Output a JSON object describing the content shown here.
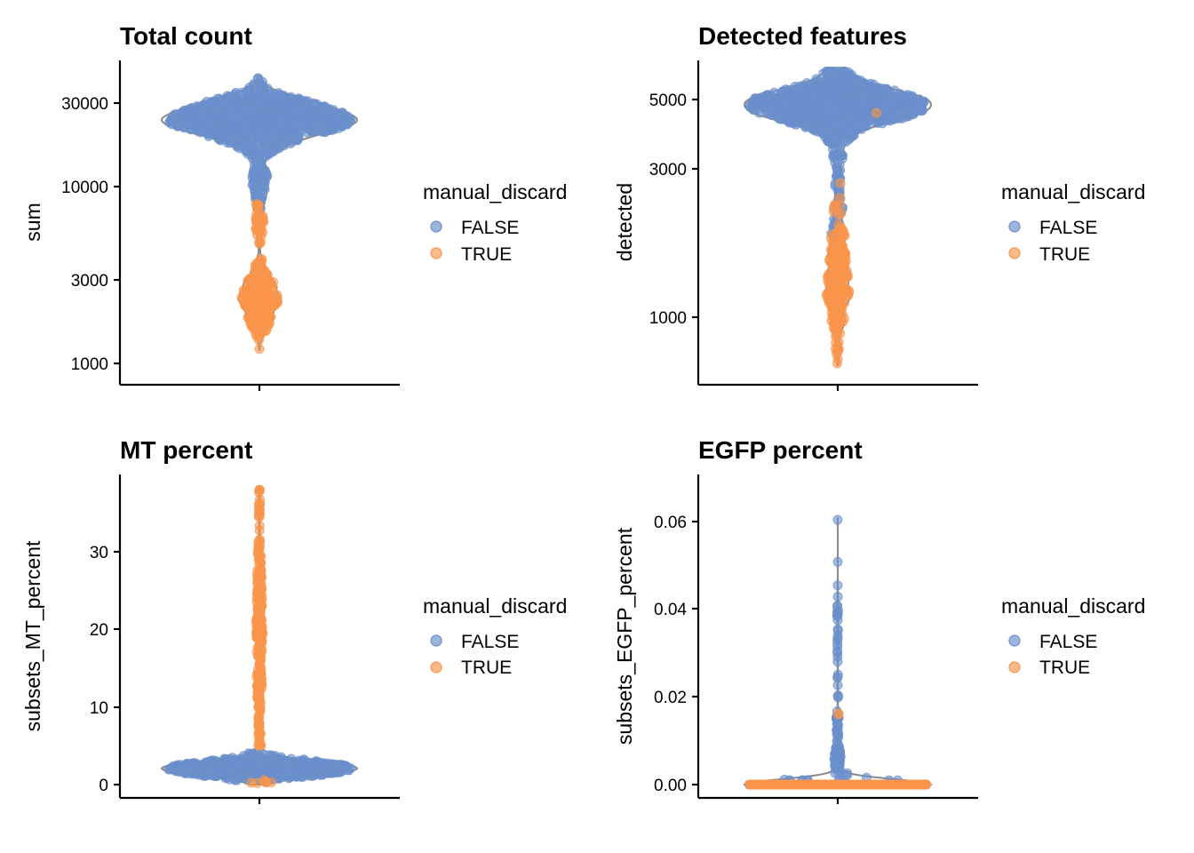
{
  "chart_data": [
    {
      "type": "violin",
      "title": "Total count",
      "xlabel": "",
      "ylabel": "sum",
      "y_scale": "log10",
      "yticks": [
        1000,
        3000,
        10000,
        30000
      ],
      "ytick_labels": [
        "1000",
        "3000",
        "10000",
        "30000"
      ],
      "ylim": [
        850,
        48000
      ],
      "legend_title": "manual_discard",
      "legend_position": "right",
      "grid": false,
      "series": [
        {
          "name": "FALSE",
          "color": "#6A8FCB",
          "approx_range": [
            5000,
            45000
          ],
          "approx_median": 22000
        },
        {
          "name": "TRUE",
          "color": "#F9954B",
          "approx_range": [
            900,
            8000
          ],
          "approx_median": 2500
        }
      ]
    },
    {
      "type": "violin",
      "title": "Detected features",
      "xlabel": "",
      "ylabel": "detected",
      "y_scale": "log10",
      "yticks": [
        1000,
        3000,
        5000
      ],
      "ytick_labels": [
        "1000",
        "3000",
        "5000"
      ],
      "ylim": [
        600,
        6400
      ],
      "legend_title": "manual_discard",
      "legend_position": "right",
      "grid": false,
      "series": [
        {
          "name": "FALSE",
          "color": "#6A8FCB",
          "approx_range": [
            1200,
            5900
          ],
          "approx_median": 4600
        },
        {
          "name": "TRUE",
          "color": "#F9954B",
          "approx_range": [
            650,
            3000
          ],
          "approx_median": 1300
        }
      ]
    },
    {
      "type": "violin",
      "title": "MT percent",
      "xlabel": "",
      "ylabel": "subsets_MT_percent",
      "y_scale": "linear",
      "yticks": [
        0,
        10,
        20,
        30
      ],
      "ytick_labels": [
        "0",
        "10",
        "20",
        "30"
      ],
      "ylim": [
        -1.8,
        40
      ],
      "legend_title": "manual_discard",
      "legend_position": "right",
      "grid": false,
      "series": [
        {
          "name": "FALSE",
          "color": "#6A8FCB",
          "approx_range": [
            0.5,
            5
          ],
          "approx_median": 2
        },
        {
          "name": "TRUE",
          "color": "#F9954B",
          "approx_range": [
            0,
            38
          ],
          "approx_median": 20
        }
      ]
    },
    {
      "type": "violin",
      "title": "EGFP percent",
      "xlabel": "",
      "ylabel": "subsets_EGFP_percent",
      "y_scale": "linear",
      "yticks": [
        0.0,
        0.02,
        0.04,
        0.06
      ],
      "ytick_labels": [
        "0.00",
        "0.02",
        "0.04",
        "0.06"
      ],
      "ylim": [
        -0.003,
        0.07
      ],
      "legend_title": "manual_discard",
      "legend_position": "right",
      "grid": false,
      "series": [
        {
          "name": "FALSE",
          "color": "#6A8FCB",
          "approx_range": [
            0,
            0.067
          ],
          "approx_median": 0.0
        },
        {
          "name": "TRUE",
          "color": "#F9954B",
          "approx_range": [
            0,
            0.016
          ],
          "approx_median": 0.0
        }
      ]
    }
  ]
}
